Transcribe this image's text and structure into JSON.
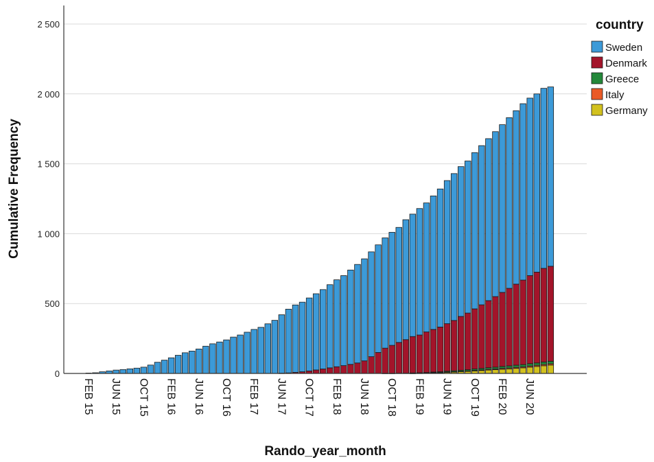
{
  "chart_data": {
    "type": "bar",
    "stacked": true,
    "cumulative": true,
    "xlabel": "Rando_year_month",
    "ylabel": "Cumulative Frequency",
    "ylim": [
      0,
      2500
    ],
    "yticks": [
      0,
      500,
      1000,
      1500,
      2000,
      2500
    ],
    "ytick_labels": [
      "0",
      "500",
      "1 000",
      "1 500",
      "2 000",
      "2 500"
    ],
    "xtick_labels": [
      "FEB 15",
      "JUN 15",
      "OCT 15",
      "FEB 16",
      "JUN 16",
      "OCT 16",
      "FEB 17",
      "JUN 17",
      "OCT 17",
      "FEB 18",
      "JUN 18",
      "OCT 18",
      "FEB 19",
      "JUN 19",
      "OCT 19",
      "FEB 20",
      "JUN 20"
    ],
    "categories": [
      "FEB 15",
      "MAR 15",
      "APR 15",
      "MAY 15",
      "JUN 15",
      "JUL 15",
      "AUG 15",
      "SEP 15",
      "OCT 15",
      "NOV 15",
      "DEC 15",
      "JAN 16",
      "FEB 16",
      "MAR 16",
      "APR 16",
      "MAY 16",
      "JUN 16",
      "JUL 16",
      "AUG 16",
      "SEP 16",
      "OCT 16",
      "NOV 16",
      "DEC 16",
      "JAN 17",
      "FEB 17",
      "MAR 17",
      "APR 17",
      "MAY 17",
      "JUN 17",
      "JUL 17",
      "AUG 17",
      "SEP 17",
      "OCT 17",
      "NOV 17",
      "DEC 17",
      "JAN 18",
      "FEB 18",
      "MAR 18",
      "APR 18",
      "MAY 18",
      "JUN 18",
      "JUL 18",
      "AUG 18",
      "SEP 18",
      "OCT 18",
      "NOV 18",
      "DEC 18",
      "JAN 19",
      "FEB 19",
      "MAR 19",
      "APR 19",
      "MAY 19",
      "JUN 19",
      "JUL 19",
      "AUG 19",
      "SEP 19",
      "OCT 19",
      "NOV 19",
      "DEC 19",
      "JAN 20",
      "FEB 20",
      "MAR 20",
      "APR 20",
      "MAY 20",
      "JUN 20",
      "JUL 20",
      "AUG 20",
      "SEP 20"
    ],
    "totals": [
      0,
      5,
      12,
      18,
      24,
      28,
      33,
      38,
      45,
      60,
      80,
      95,
      112,
      130,
      148,
      160,
      175,
      195,
      212,
      225,
      240,
      260,
      275,
      295,
      315,
      330,
      355,
      380,
      420,
      460,
      490,
      510,
      540,
      570,
      600,
      635,
      670,
      700,
      740,
      780,
      820,
      870,
      920,
      970,
      1010,
      1045,
      1100,
      1140,
      1180,
      1220,
      1270,
      1320,
      1380,
      1430,
      1480,
      1520,
      1580,
      1630,
      1680,
      1730,
      1780,
      1830,
      1880,
      1930,
      1970,
      2000,
      2040,
      2050
    ],
    "denmark": [
      0,
      0,
      0,
      0,
      0,
      0,
      0,
      0,
      0,
      0,
      0,
      0,
      0,
      0,
      0,
      0,
      0,
      0,
      0,
      0,
      0,
      0,
      0,
      0,
      0,
      0,
      0,
      0,
      2,
      4,
      8,
      12,
      18,
      25,
      32,
      40,
      48,
      56,
      65,
      75,
      90,
      120,
      150,
      180,
      200,
      220,
      240,
      260,
      270,
      290,
      305,
      320,
      340,
      360,
      385,
      405,
      430,
      455,
      480,
      505,
      530,
      555,
      580,
      605,
      630,
      650,
      670,
      680
    ],
    "greece": [
      0,
      0,
      0,
      0,
      0,
      0,
      0,
      0,
      0,
      0,
      0,
      0,
      0,
      0,
      0,
      0,
      0,
      0,
      0,
      0,
      0,
      0,
      0,
      0,
      0,
      0,
      0,
      0,
      0,
      0,
      0,
      0,
      0,
      0,
      0,
      0,
      0,
      0,
      0,
      0,
      0,
      0,
      0,
      1,
      1,
      2,
      2,
      3,
      3,
      4,
      4,
      5,
      6,
      7,
      8,
      9,
      10,
      11,
      12,
      13,
      14,
      15,
      16,
      16,
      17,
      17,
      18,
      18
    ],
    "italy": [
      0,
      0,
      0,
      0,
      0,
      0,
      0,
      0,
      0,
      0,
      0,
      0,
      0,
      0,
      0,
      0,
      0,
      0,
      0,
      0,
      0,
      0,
      0,
      0,
      0,
      0,
      0,
      0,
      0,
      0,
      0,
      0,
      0,
      0,
      0,
      0,
      0,
      0,
      0,
      0,
      0,
      0,
      0,
      0,
      0,
      0,
      0,
      0,
      0,
      0,
      1,
      1,
      2,
      2,
      3,
      3,
      4,
      4,
      5,
      5,
      6,
      6,
      7,
      7,
      8,
      8,
      9,
      9
    ],
    "germany": [
      0,
      0,
      0,
      0,
      0,
      0,
      0,
      0,
      0,
      0,
      0,
      0,
      0,
      0,
      0,
      0,
      0,
      0,
      0,
      0,
      0,
      0,
      0,
      0,
      0,
      0,
      0,
      0,
      0,
      0,
      0,
      0,
      0,
      0,
      0,
      0,
      0,
      0,
      0,
      0,
      0,
      0,
      0,
      0,
      0,
      0,
      0,
      1,
      2,
      3,
      5,
      6,
      8,
      10,
      12,
      15,
      18,
      21,
      24,
      27,
      30,
      33,
      36,
      40,
      45,
      50,
      55,
      60
    ],
    "legend_title": "country",
    "legend_position": "top-right",
    "series": [
      {
        "name": "Sweden",
        "color": "#3c9ad8"
      },
      {
        "name": "Denmark",
        "color": "#a3142a"
      },
      {
        "name": "Greece",
        "color": "#23883a"
      },
      {
        "name": "Italy",
        "color": "#ea5a26"
      },
      {
        "name": "Germany",
        "color": "#d2c11e"
      }
    ],
    "grid": "horizontal"
  }
}
